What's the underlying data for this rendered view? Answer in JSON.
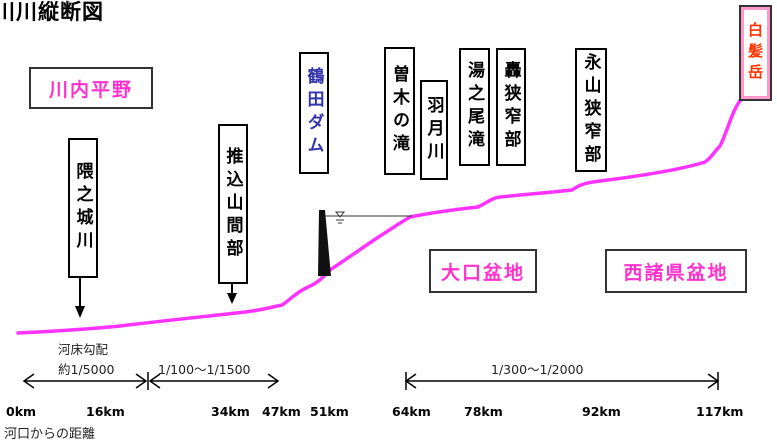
{
  "title": "川川縦断図",
  "regions": {
    "sendai_plain": "川内平野",
    "okuchi_basin": "大口盆地",
    "nishimorokata_basin": "西諸県盆地"
  },
  "features": {
    "kumanojogawa": "隈之城川",
    "oshikomi": "推込山間部",
    "tsuruda_dam": "鶴田ダム",
    "sogi_falls": "曽木の滝",
    "hazuki": "羽月川",
    "yunoo_falls": "湯之尾滝",
    "todoroki": "轟狭窄部",
    "nagayama": "永山狭窄部",
    "shiragatake": "白髪岳"
  },
  "gradient": {
    "label_line1": "河床勾配",
    "label_line2": "約1/5000",
    "mid": "1/100～1/1500",
    "upper": "1/300～1/2000"
  },
  "distance": {
    "caption": "河口からの距離",
    "ticks": [
      "0km",
      "16km",
      "34km",
      "47km",
      "51km",
      "64km",
      "78km",
      "92km",
      "117km"
    ]
  },
  "colors": {
    "profile": "#ff33ff",
    "region_text": "#ff33cc",
    "dam_text": "#3333aa",
    "peak_text": "#ff3300"
  }
}
